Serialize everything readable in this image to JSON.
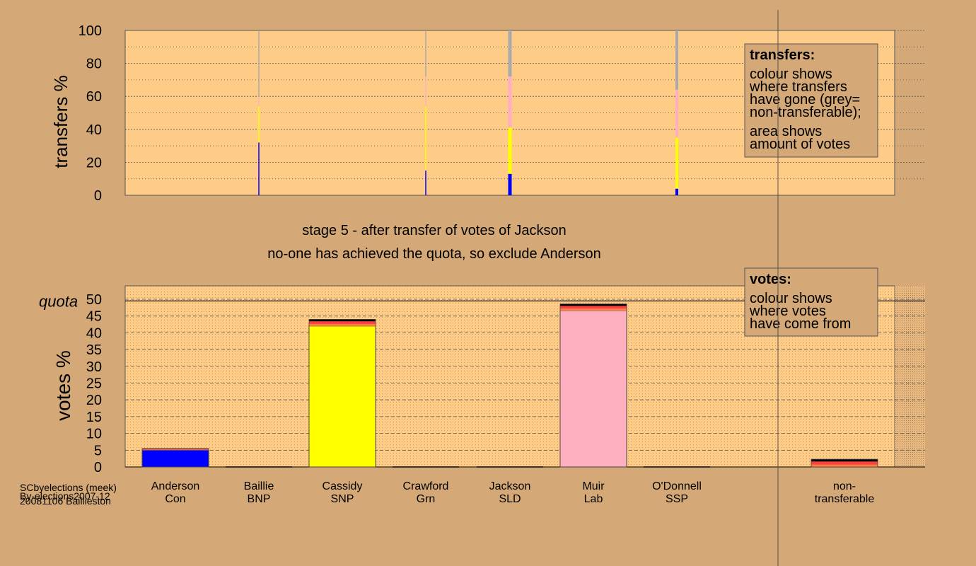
{
  "titles": {
    "stage": "stage 5 - after transfer of votes of Jackson",
    "decision": "no-one has achieved the quota, so exclude Anderson"
  },
  "transfers_legend": {
    "heading": "transfers:",
    "lines": [
      "colour shows",
      "where transfers",
      "have gone (grey=",
      "non-transferable);"
    ],
    "lines2": [
      "area shows",
      "amount of votes"
    ]
  },
  "votes_legend": {
    "heading": "votes:",
    "lines": [
      "colour shows",
      "where votes",
      "have come from"
    ]
  },
  "footer": {
    "lines": [
      "SCbyelections (meek)",
      "By-elections2007-12",
      "20081106 Baillieston"
    ]
  },
  "colors": {
    "background": "#d4a977",
    "plot_bg": "#ffcc88",
    "Con": "#0000ff",
    "SNP": "#ffff00",
    "Lab": "#ffb0c0",
    "nontransferable": "#aaaaaa",
    "red_sliver": "#ff4040",
    "orange_sliver": "#ff8040"
  },
  "chart_data": [
    {
      "type": "bar",
      "name": "transfers",
      "ylabel": "transfers %",
      "ylim": [
        0,
        100
      ],
      "yticks": [
        0,
        20,
        40,
        60,
        80,
        100
      ],
      "note": "stacked transfer columns",
      "columns": [
        {
          "x_index": 1,
          "segments": [
            {
              "party": "Con",
              "value": 32
            },
            {
              "party": "SNP",
              "value": 22
            },
            {
              "party": "Lab",
              "value": 6
            },
            {
              "party": "nontransferable",
              "value": 40
            }
          ],
          "width": "hair"
        },
        {
          "x_index": 3,
          "segments": [
            {
              "party": "Con",
              "value": 15
            },
            {
              "party": "SNP",
              "value": 39
            },
            {
              "party": "Lab",
              "value": 18
            },
            {
              "party": "nontransferable",
              "value": 28
            }
          ],
          "width": "hair"
        },
        {
          "x_index": 4,
          "segments": [
            {
              "party": "Con",
              "value": 13
            },
            {
              "party": "SNP",
              "value": 28
            },
            {
              "party": "Lab",
              "value": 31
            },
            {
              "party": "nontransferable",
              "value": 28
            }
          ],
          "width": "medium"
        },
        {
          "x_index": 6,
          "segments": [
            {
              "party": "Con",
              "value": 4
            },
            {
              "party": "SNP",
              "value": 31
            },
            {
              "party": "Lab",
              "value": 29
            },
            {
              "party": "nontransferable",
              "value": 36
            }
          ],
          "width": "thin"
        }
      ]
    },
    {
      "type": "bar",
      "name": "votes",
      "ylabel": "votes %",
      "ylim": [
        0,
        50
      ],
      "yticks": [
        0,
        5,
        10,
        15,
        20,
        25,
        30,
        35,
        40,
        45,
        50
      ],
      "quota": 49.5,
      "quota_label": "quota",
      "categories": [
        {
          "name": "Anderson",
          "party": "Con",
          "value": 5.5,
          "base_party": "Con",
          "base": 5.0
        },
        {
          "name": "Baillie",
          "party": "BNP",
          "value": 0,
          "base_party": "BNP",
          "base": 0
        },
        {
          "name": "Cassidy",
          "party": "SNP",
          "value": 44.0,
          "base_party": "SNP",
          "base": 42.0
        },
        {
          "name": "Crawford",
          "party": "Grn",
          "value": 0,
          "base_party": "Grn",
          "base": 0
        },
        {
          "name": "Jackson",
          "party": "SLD",
          "value": 0,
          "base_party": "SLD",
          "base": 0
        },
        {
          "name": "Muir",
          "party": "Lab",
          "value": 48.6,
          "base_party": "Lab",
          "base": 46.6
        },
        {
          "name": "O'Donnell",
          "party": "SSP",
          "value": 0,
          "base_party": "SSP",
          "base": 0
        },
        {
          "name": "non-",
          "party": "transferable",
          "value": 2.3,
          "base_party": "none",
          "base": 0
        }
      ]
    }
  ]
}
